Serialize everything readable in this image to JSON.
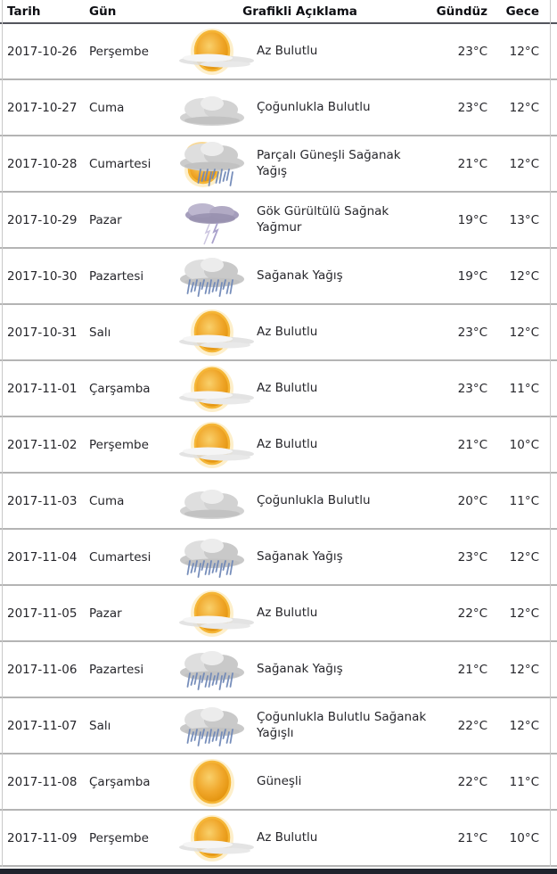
{
  "header": {
    "columns": [
      "Tarih",
      "Gün",
      "Grafikli Açıklama",
      "Gündüz",
      "Gece"
    ]
  },
  "colors": {
    "text": "#26262b",
    "header_underline": "#53555d",
    "row_separator": "#b4b4b4",
    "bottom_bar": "#20232d",
    "sun": "#f0a72b",
    "cloud": "#d6d6d6",
    "rain": "#7089b8",
    "storm_cloud": "#a59ebc"
  },
  "rows": [
    {
      "date": "2017-10-26",
      "day": "Perşembe",
      "icon": "sun-cloud",
      "desc": "Az Bulutlu",
      "day_temp": "23°C",
      "night_temp": "12°C"
    },
    {
      "date": "2017-10-27",
      "day": "Cuma",
      "icon": "cloud",
      "desc": "Çoğunlukla Bulutlu",
      "day_temp": "23°C",
      "night_temp": "12°C"
    },
    {
      "date": "2017-10-28",
      "day": "Cumartesi",
      "icon": "sun-rain-cloud",
      "desc": "Parçalı Güneşli Sağanak Yağış",
      "day_temp": "21°C",
      "night_temp": "12°C"
    },
    {
      "date": "2017-10-29",
      "day": "Pazar",
      "icon": "storm-cloud",
      "desc": "Gök Gürültülü Sağnak Yağmur",
      "day_temp": "19°C",
      "night_temp": "13°C"
    },
    {
      "date": "2017-10-30",
      "day": "Pazartesi",
      "icon": "rain-cloud",
      "desc": "Sağanak Yağış",
      "day_temp": "19°C",
      "night_temp": "12°C"
    },
    {
      "date": "2017-10-31",
      "day": "Salı",
      "icon": "sun-cloud",
      "desc": "Az Bulutlu",
      "day_temp": "23°C",
      "night_temp": "12°C"
    },
    {
      "date": "2017-11-01",
      "day": "Çarşamba",
      "icon": "sun-cloud",
      "desc": "Az Bulutlu",
      "day_temp": "23°C",
      "night_temp": "11°C"
    },
    {
      "date": "2017-11-02",
      "day": "Perşembe",
      "icon": "sun-cloud",
      "desc": "Az Bulutlu",
      "day_temp": "21°C",
      "night_temp": "10°C"
    },
    {
      "date": "2017-11-03",
      "day": "Cuma",
      "icon": "cloud",
      "desc": "Çoğunlukla Bulutlu",
      "day_temp": "20°C",
      "night_temp": "11°C"
    },
    {
      "date": "2017-11-04",
      "day": "Cumartesi",
      "icon": "rain-cloud",
      "desc": "Sağanak Yağış",
      "day_temp": "23°C",
      "night_temp": "12°C"
    },
    {
      "date": "2017-11-05",
      "day": "Pazar",
      "icon": "sun-cloud",
      "desc": "Az Bulutlu",
      "day_temp": "22°C",
      "night_temp": "12°C"
    },
    {
      "date": "2017-11-06",
      "day": "Pazartesi",
      "icon": "rain-cloud",
      "desc": "Sağanak Yağış",
      "day_temp": "21°C",
      "night_temp": "12°C"
    },
    {
      "date": "2017-11-07",
      "day": "Salı",
      "icon": "rain-cloud",
      "desc": "Çoğunlukla Bulutlu Sağanak Yağışlı",
      "day_temp": "22°C",
      "night_temp": "12°C"
    },
    {
      "date": "2017-11-08",
      "day": "Çarşamba",
      "icon": "sun",
      "desc": "Güneşli",
      "day_temp": "22°C",
      "night_temp": "11°C"
    },
    {
      "date": "2017-11-09",
      "day": "Perşembe",
      "icon": "sun-cloud",
      "desc": "Az Bulutlu",
      "day_temp": "21°C",
      "night_temp": "10°C"
    }
  ]
}
